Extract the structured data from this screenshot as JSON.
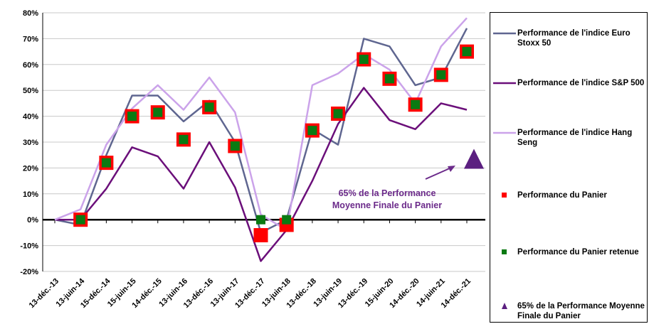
{
  "chart_data": {
    "type": "line",
    "categories": [
      "13-déc.-13",
      "13-juin-14",
      "15-déc.-14",
      "15-juin-15",
      "14-déc.-15",
      "13-juin-16",
      "13-déc.-16",
      "13-juin-17",
      "13-déc.-17",
      "13-juin-18",
      "13-déc.-18",
      "13-juin-19",
      "13-déc.-19",
      "15-juin-20",
      "14-déc.-20",
      "14-juin-21",
      "14-déc.-21"
    ],
    "ylim": [
      -20,
      80
    ],
    "yticks": [
      {
        "value": -20,
        "label": "-20%"
      },
      {
        "value": -10,
        "label": "-10%"
      },
      {
        "value": 0,
        "label": "0%"
      },
      {
        "value": 10,
        "label": "10%"
      },
      {
        "value": 20,
        "label": "20%"
      },
      {
        "value": 30,
        "label": "30%"
      },
      {
        "value": 40,
        "label": "40%"
      },
      {
        "value": 50,
        "label": "50%"
      },
      {
        "value": 60,
        "label": "60%"
      },
      {
        "value": 70,
        "label": "70%"
      },
      {
        "value": 80,
        "label": "80%"
      }
    ],
    "grid": true,
    "series": [
      {
        "name": "Performance de l'indice Euro Stoxx 50",
        "marker": "line",
        "color": "#5f6690",
        "values": [
          0,
          -2,
          25,
          48,
          48,
          38,
          46,
          30,
          -5,
          0,
          35,
          29,
          70,
          67,
          52,
          55,
          74
        ]
      },
      {
        "name": "Performance de l'indice S&P 500",
        "marker": "line",
        "color": "#6b0f7a",
        "values": [
          0,
          0,
          12,
          28,
          24.5,
          12,
          30,
          12.5,
          -16,
          -4,
          15,
          37,
          51,
          38.5,
          35,
          45,
          42.5
        ]
      },
      {
        "name": "Performance de l'indice Hang Seng",
        "marker": "line",
        "color": "#cba3ea",
        "values": [
          0,
          4,
          29,
          43,
          52,
          42.5,
          55,
          41.5,
          2,
          -4,
          52,
          56.5,
          64,
          58,
          45,
          67,
          78
        ]
      },
      {
        "name": "Performance du Panier",
        "marker": "square",
        "color": "#ff0000",
        "values": [
          null,
          0,
          22,
          40,
          41.5,
          31,
          43.5,
          28.5,
          -6,
          -2,
          34.5,
          41,
          62,
          54.5,
          44.5,
          56,
          65
        ]
      },
      {
        "name": "Performance du Panier retenue",
        "marker": "small-square",
        "color": "#0a7a12",
        "values": [
          null,
          0,
          22,
          40,
          41.5,
          31,
          43.5,
          28.5,
          0,
          0,
          34.5,
          41,
          62,
          54.5,
          44.5,
          56,
          65
        ]
      },
      {
        "name": "65% de la Performance Moyenne Finale du Panier",
        "marker": "triangle",
        "color": "#5b1f80",
        "values": [
          null,
          null,
          null,
          null,
          null,
          null,
          null,
          null,
          null,
          null,
          null,
          null,
          null,
          null,
          null,
          null,
          23
        ]
      }
    ],
    "annotation": {
      "lines": [
        "65% de la Performance",
        "Moyenne Finale du Panier"
      ],
      "color": "#6b2a8a"
    }
  }
}
